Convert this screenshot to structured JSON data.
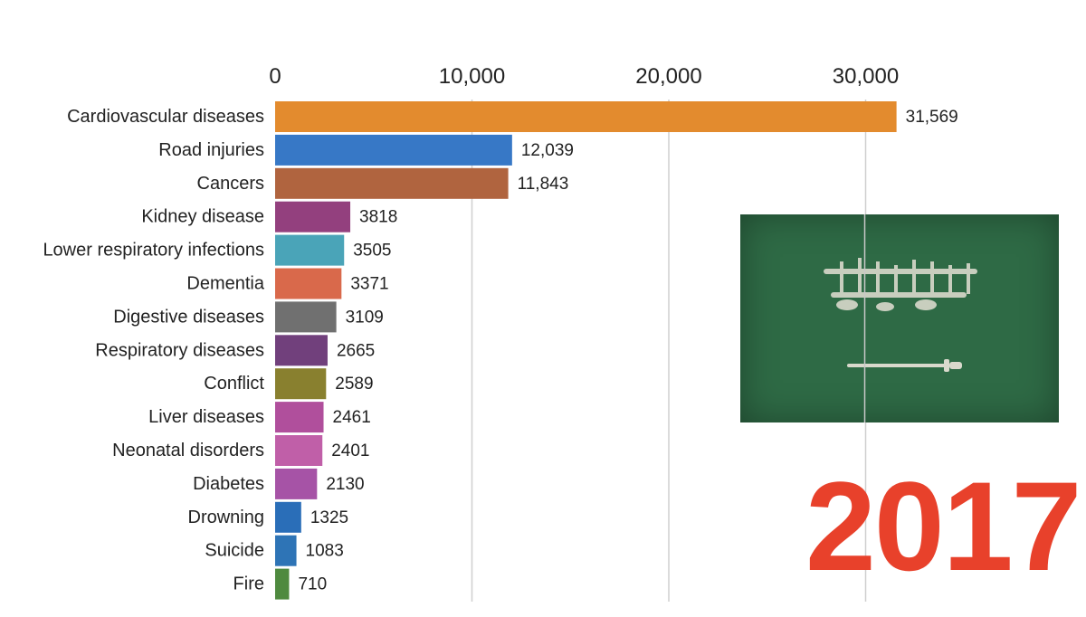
{
  "year": "2017",
  "flag_icon": "saudi-arabia-flag-icon",
  "colors": {
    "year": "#e8412b",
    "flag": "#2e6a45"
  },
  "chart_data": {
    "type": "bar",
    "orientation": "horizontal",
    "xlim": [
      0,
      32000
    ],
    "x_ticks": [
      0,
      10000,
      20000,
      30000
    ],
    "x_tick_labels": [
      "0",
      "10,000",
      "20,000",
      "30,000"
    ],
    "grid": true,
    "categories": [
      "Cardiovascular diseases",
      "Road injuries",
      "Cancers",
      "Kidney disease",
      "Lower respiratory infections",
      "Dementia",
      "Digestive diseases",
      "Respiratory diseases",
      "Conflict",
      "Liver diseases",
      "Neonatal disorders",
      "Diabetes",
      "Drowning",
      "Suicide",
      "Fire"
    ],
    "values": [
      31569,
      12039,
      11843,
      3818,
      3505,
      3371,
      3109,
      2665,
      2589,
      2461,
      2401,
      2130,
      1325,
      1083,
      710
    ],
    "value_labels": [
      "31,569",
      "12,039",
      "11,843",
      "3818",
      "3505",
      "3371",
      "3109",
      "2665",
      "2589",
      "2461",
      "2401",
      "2130",
      "1325",
      "1083",
      "710"
    ],
    "bar_colors": [
      "#e38b2e",
      "#3778c6",
      "#b0643f",
      "#93407e",
      "#4aa4b8",
      "#d9694b",
      "#707070",
      "#71407c",
      "#89802f",
      "#b04f9c",
      "#c05fa8",
      "#a653a6",
      "#2a6eb8",
      "#2e74b6",
      "#4f8a3f"
    ]
  }
}
